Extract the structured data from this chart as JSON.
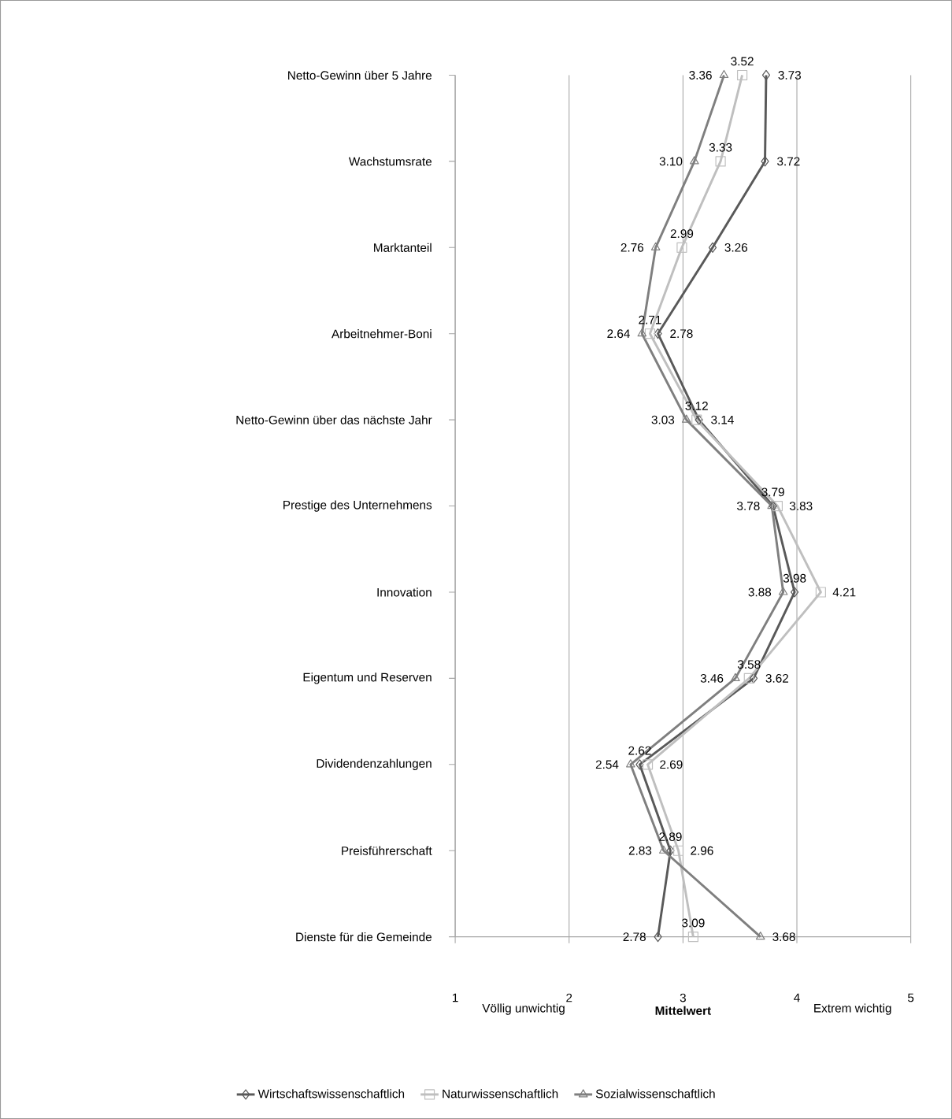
{
  "chart_data": {
    "type": "line",
    "orientation": "horizontal",
    "xlabel": "Mittelwert",
    "categories": [
      "Netto-Gewinn über 5 Jahre",
      "Wachstumsrate",
      "Marktanteil",
      "Arbeitnehmer-Boni",
      "Netto-Gewinn über das nächste Jahr",
      "Prestige des Unternehmens",
      "Innovation",
      "Eigentum und Reserven",
      "Dividendenzahlungen",
      "Preisführerschaft",
      "Dienste für die Gemeinde"
    ],
    "series": [
      {
        "name": "Wirtschaftswissenschaftlich",
        "color": "#595959",
        "marker": "diamond",
        "values": [
          3.73,
          3.72,
          3.26,
          2.78,
          3.14,
          3.79,
          3.98,
          3.62,
          2.62,
          2.89,
          2.78
        ],
        "value_labels": [
          "3.73",
          "3.72",
          "3.26",
          "2.78",
          "3.14",
          "3.79",
          "3.98",
          "3.62",
          "2.62",
          "2.89",
          "2.78"
        ]
      },
      {
        "name": "Naturwissenschaftlich",
        "color": "#bfbfbf",
        "marker": "square",
        "values": [
          3.52,
          3.33,
          2.99,
          2.71,
          3.12,
          3.83,
          4.21,
          3.58,
          2.69,
          2.96,
          3.09
        ],
        "value_labels": [
          "3.52",
          "3.33",
          "2.99",
          "2.71",
          "3.12",
          "3.83",
          "4.21",
          "3.58",
          "2.69",
          "2.96",
          "3.09"
        ]
      },
      {
        "name": "Sozialwissenschaftlich",
        "color": "#7f7f7f",
        "marker": "triangle",
        "values": [
          3.36,
          3.1,
          2.76,
          2.64,
          3.03,
          3.78,
          3.88,
          3.46,
          2.54,
          2.83,
          3.68
        ],
        "value_labels": [
          "3.36",
          "3.10",
          "2.76",
          "2.64",
          "3.03",
          "3.78",
          "3.88",
          "3.46",
          "2.54",
          "2.83",
          "3.68"
        ]
      }
    ],
    "xlim": [
      1,
      5
    ],
    "xticks": [
      1,
      2,
      3,
      4,
      5
    ],
    "grid": "x",
    "legend": "bottom",
    "annotations": [
      "Völlig unwichtig",
      "Extrem wichtig"
    ]
  }
}
